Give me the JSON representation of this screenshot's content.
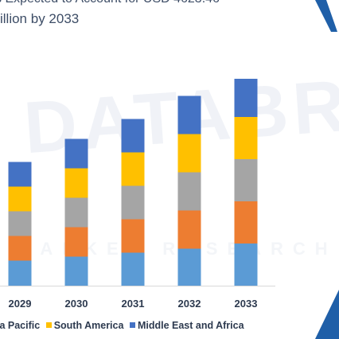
{
  "header": {
    "title_line1": "s Expected to Account for USD 4623.46",
    "title_line2": "illion by 2033"
  },
  "watermark": {
    "text": "DATABR",
    "subtext": "MARKET RESEARCH"
  },
  "colors": {
    "title": "#3d4d66",
    "accent": "#1f5fa8",
    "Asia Pacific": "#5b9bd5",
    "series_2": "#ed7d31",
    "series_3": "#a5a5a5",
    "South America": "#ffc000",
    "Middle East and Africa": "#4472c4"
  },
  "legend_items": [
    "ia Pacific",
    "South America",
    "Middle East and Africa"
  ],
  "chart_data": {
    "type": "bar",
    "stacked": true,
    "categories": [
      "2029",
      "2030",
      "2031",
      "2032",
      "2033"
    ],
    "series": [
      {
        "name": "Asia Pacific",
        "values": [
          630,
          730,
          830,
          930,
          1060
        ]
      },
      {
        "values": [
          620,
          740,
          840,
          960,
          1060
        ]
      },
      {
        "values": [
          620,
          740,
          840,
          960,
          1060
        ]
      },
      {
        "name": "South America",
        "values": [
          620,
          740,
          840,
          960,
          1060
        ]
      },
      {
        "name": "Middle East and Africa",
        "values": [
          620,
          740,
          840,
          960,
          960
        ]
      }
    ],
    "ylim": [
      0,
      5300
    ],
    "gridlines": false,
    "legend_position": "bottom"
  }
}
